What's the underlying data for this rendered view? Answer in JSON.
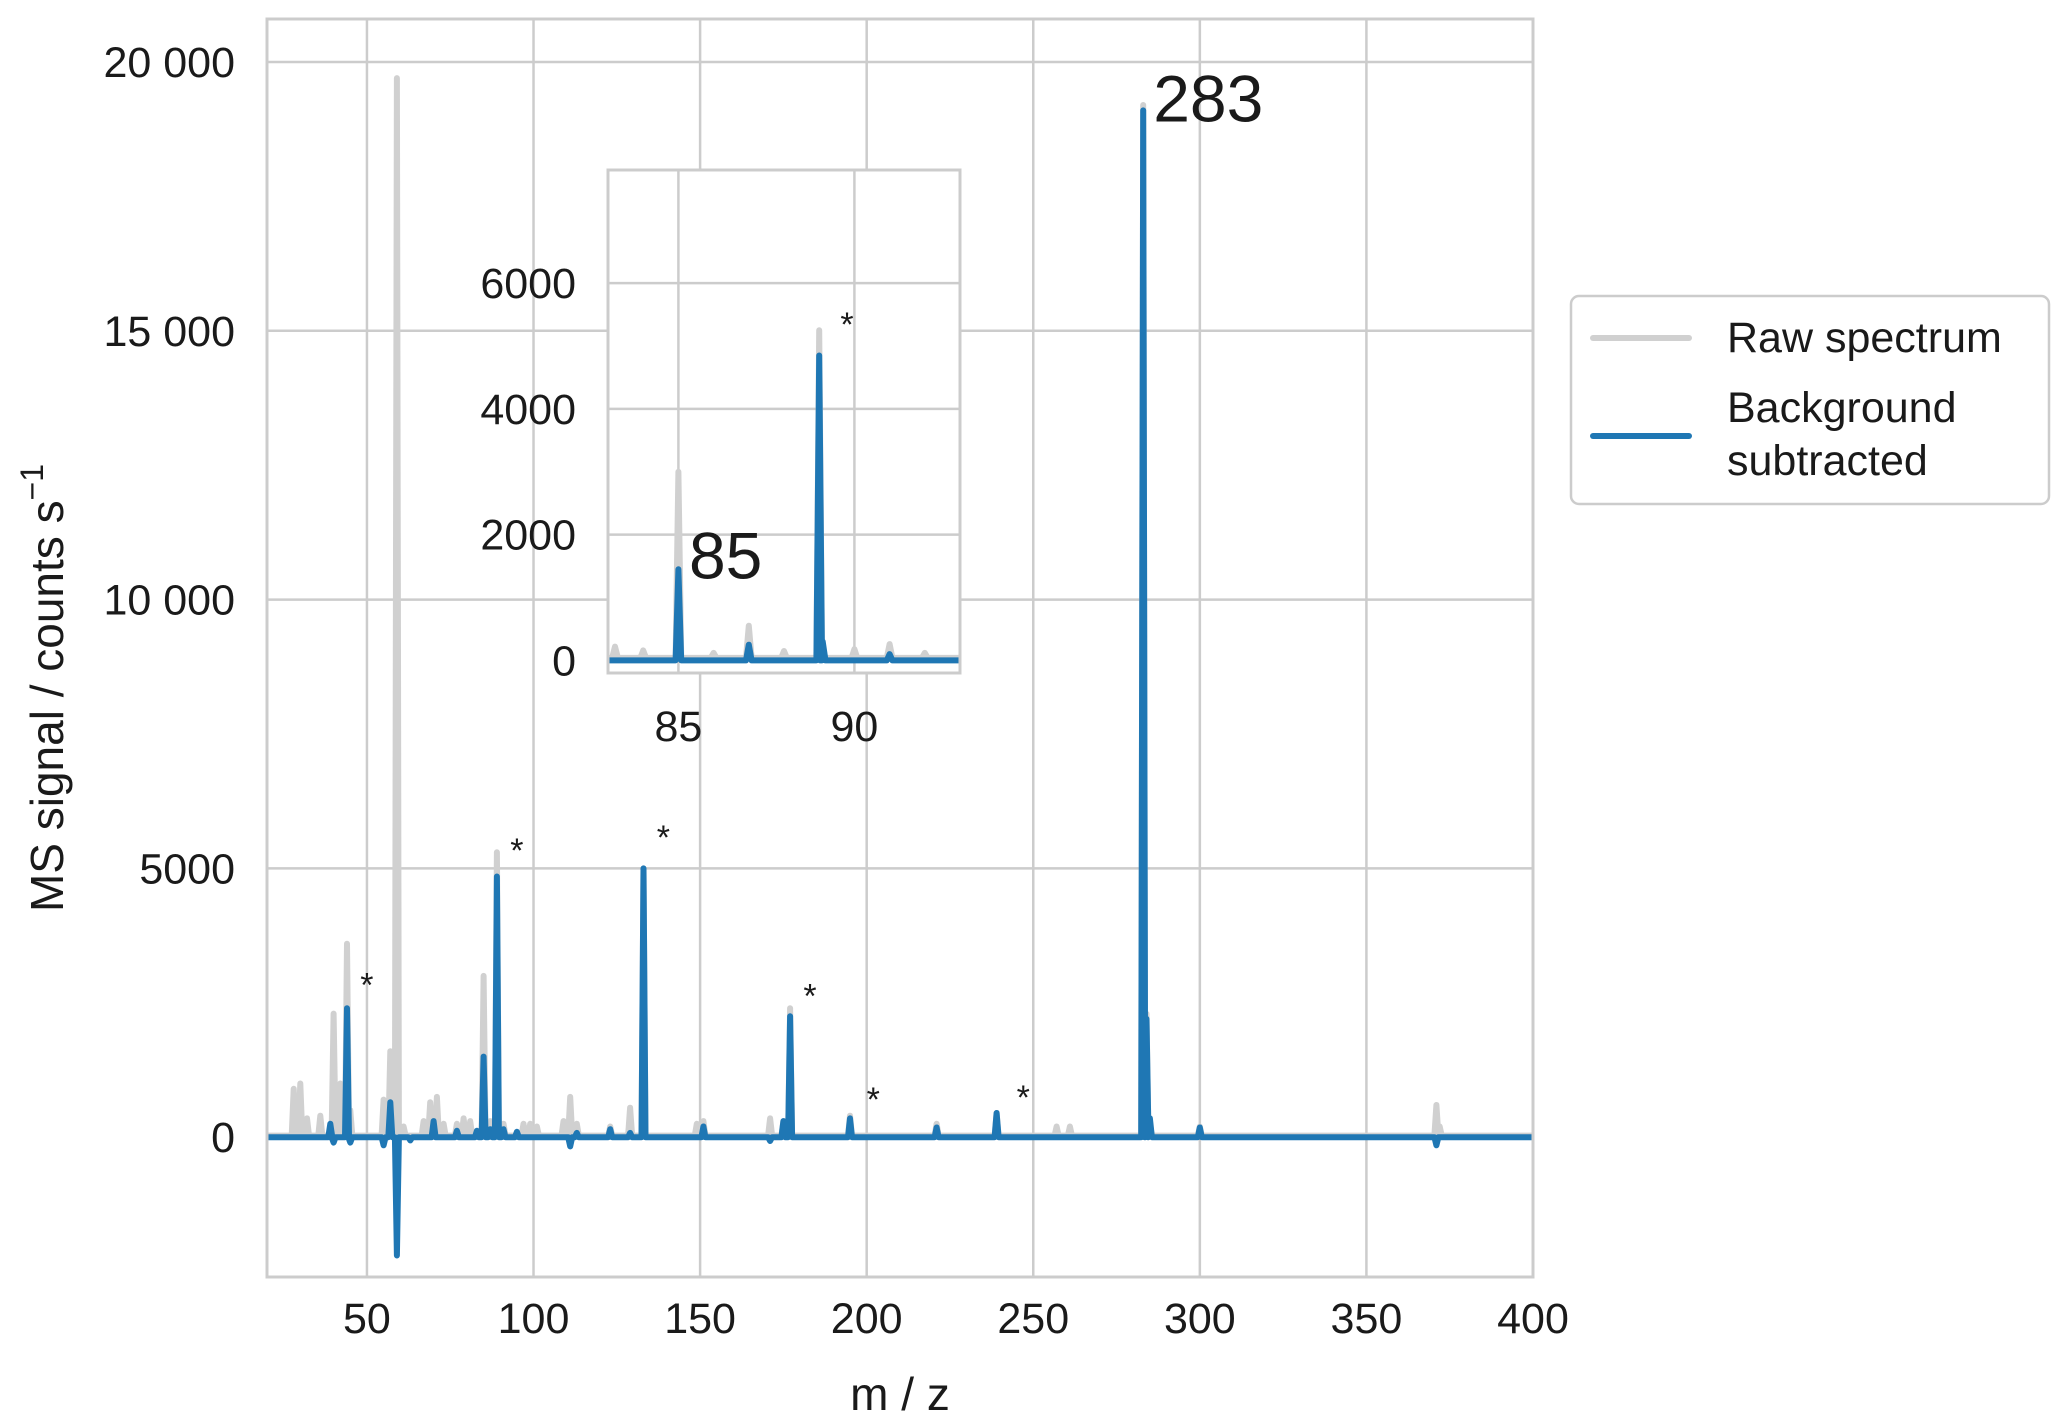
{
  "chart_data": [
    {
      "type": "line",
      "panel": "main",
      "xlabel": "m / z",
      "ylabel": "MS signal / counts s",
      "ylabel_superscript": "−1",
      "xlim": [
        20,
        400
      ],
      "ylim": [
        -2600,
        20800
      ],
      "xticks": [
        50,
        100,
        150,
        200,
        250,
        300,
        350,
        400
      ],
      "xtick_labels": [
        "50",
        "100",
        "150",
        "200",
        "250",
        "300",
        "350",
        "400"
      ],
      "yticks": [
        0,
        5000,
        10000,
        15000,
        20000
      ],
      "ytick_labels": [
        "0",
        "5000",
        "10 000",
        "15 000",
        "20 000"
      ],
      "grid": true,
      "legend": "right, outside",
      "series": [
        {
          "name": "Raw spectrum",
          "color": "#d0d0d0",
          "baseline": 30,
          "peaks": [
            {
              "x": 28,
              "y": 900
            },
            {
              "x": 30,
              "y": 1000
            },
            {
              "x": 32,
              "y": 350
            },
            {
              "x": 36,
              "y": 400
            },
            {
              "x": 40,
              "y": 2300
            },
            {
              "x": 42,
              "y": 1000
            },
            {
              "x": 44,
              "y": 3600
            },
            {
              "x": 45,
              "y": 500
            },
            {
              "x": 55,
              "y": 700
            },
            {
              "x": 57,
              "y": 1600
            },
            {
              "x": 58,
              "y": 600
            },
            {
              "x": 59,
              "y": 19700
            },
            {
              "x": 61,
              "y": 200
            },
            {
              "x": 67,
              "y": 300
            },
            {
              "x": 69,
              "y": 650
            },
            {
              "x": 71,
              "y": 750
            },
            {
              "x": 73,
              "y": 250
            },
            {
              "x": 77,
              "y": 250
            },
            {
              "x": 79,
              "y": 350
            },
            {
              "x": 81,
              "y": 300
            },
            {
              "x": 85,
              "y": 3000
            },
            {
              "x": 87,
              "y": 300
            },
            {
              "x": 89,
              "y": 5300
            },
            {
              "x": 91,
              "y": 250
            },
            {
              "x": 97,
              "y": 250
            },
            {
              "x": 99,
              "y": 250
            },
            {
              "x": 101,
              "y": 200
            },
            {
              "x": 109,
              "y": 300
            },
            {
              "x": 111,
              "y": 750
            },
            {
              "x": 113,
              "y": 250
            },
            {
              "x": 123,
              "y": 200
            },
            {
              "x": 129,
              "y": 550
            },
            {
              "x": 133,
              "y": 5000
            },
            {
              "x": 149,
              "y": 250
            },
            {
              "x": 151,
              "y": 300
            },
            {
              "x": 171,
              "y": 350
            },
            {
              "x": 175,
              "y": 300
            },
            {
              "x": 177,
              "y": 2400
            },
            {
              "x": 195,
              "y": 400
            },
            {
              "x": 221,
              "y": 250
            },
            {
              "x": 239,
              "y": 450
            },
            {
              "x": 257,
              "y": 200
            },
            {
              "x": 261,
              "y": 200
            },
            {
              "x": 283,
              "y": 19200
            },
            {
              "x": 284,
              "y": 2300
            },
            {
              "x": 285,
              "y": 250
            },
            {
              "x": 300,
              "y": 200
            },
            {
              "x": 371,
              "y": 600
            },
            {
              "x": 372,
              "y": 200
            }
          ]
        },
        {
          "name": "Background subtracted",
          "color": "#1f77b4",
          "baseline": 0,
          "peaks": [
            {
              "x": 39,
              "y": 250
            },
            {
              "x": 40,
              "y": -100
            },
            {
              "x": 44,
              "y": 2400
            },
            {
              "x": 45,
              "y": -100
            },
            {
              "x": 55,
              "y": -150
            },
            {
              "x": 57,
              "y": 650
            },
            {
              "x": 59,
              "y": -2200
            },
            {
              "x": 63,
              "y": -60
            },
            {
              "x": 70,
              "y": 300
            },
            {
              "x": 77,
              "y": 120
            },
            {
              "x": 83,
              "y": 120
            },
            {
              "x": 85,
              "y": 1500
            },
            {
              "x": 87,
              "y": 150
            },
            {
              "x": 89,
              "y": 4850
            },
            {
              "x": 91,
              "y": 150
            },
            {
              "x": 95,
              "y": 100
            },
            {
              "x": 111,
              "y": -170
            },
            {
              "x": 113,
              "y": 80
            },
            {
              "x": 123,
              "y": 150
            },
            {
              "x": 129,
              "y": 80
            },
            {
              "x": 133,
              "y": 5000
            },
            {
              "x": 151,
              "y": 200
            },
            {
              "x": 171,
              "y": -70
            },
            {
              "x": 175,
              "y": 300
            },
            {
              "x": 177,
              "y": 2250
            },
            {
              "x": 195,
              "y": 350
            },
            {
              "x": 221,
              "y": 180
            },
            {
              "x": 239,
              "y": 450
            },
            {
              "x": 283,
              "y": 19100
            },
            {
              "x": 284,
              "y": 2200
            },
            {
              "x": 285,
              "y": 350
            },
            {
              "x": 300,
              "y": 180
            },
            {
              "x": 371,
              "y": -150
            }
          ]
        }
      ],
      "annotations": [
        {
          "text": "283",
          "x": 286,
          "y": 19300,
          "size": "large"
        },
        {
          "text": "*",
          "x": 48,
          "y": 2950,
          "size": "small"
        },
        {
          "text": "*",
          "x": 93,
          "y": 5450,
          "size": "small"
        },
        {
          "text": "*",
          "x": 137,
          "y": 5700,
          "size": "small"
        },
        {
          "text": "*",
          "x": 181,
          "y": 2750,
          "size": "small"
        },
        {
          "text": "*",
          "x": 200,
          "y": 820,
          "size": "small"
        },
        {
          "text": "*",
          "x": 245,
          "y": 860,
          "size": "small"
        }
      ]
    },
    {
      "type": "line",
      "panel": "inset",
      "xlim": [
        83,
        93
      ],
      "ylim": [
        -200,
        7800
      ],
      "xticks": [
        85,
        90
      ],
      "xtick_labels": [
        "85",
        "90"
      ],
      "yticks": [
        0,
        2000,
        4000,
        6000
      ],
      "ytick_labels": [
        "0",
        "2000",
        "4000",
        "6000"
      ],
      "grid": true,
      "series": [
        {
          "name": "Raw spectrum",
          "color": "#d0d0d0",
          "baseline": 40,
          "peaks": [
            {
              "x": 83.2,
              "y": 220
            },
            {
              "x": 84.0,
              "y": 160
            },
            {
              "x": 85.0,
              "y": 3000
            },
            {
              "x": 86.0,
              "y": 120
            },
            {
              "x": 87.0,
              "y": 550
            },
            {
              "x": 88.0,
              "y": 150
            },
            {
              "x": 89.0,
              "y": 5250
            },
            {
              "x": 90.0,
              "y": 180
            },
            {
              "x": 91.0,
              "y": 260
            },
            {
              "x": 92.0,
              "y": 120
            }
          ]
        },
        {
          "name": "Background subtracted",
          "color": "#1f77b4",
          "baseline": 0,
          "peaks": [
            {
              "x": 85.0,
              "y": 1450
            },
            {
              "x": 87.0,
              "y": 250
            },
            {
              "x": 89.0,
              "y": 4850
            },
            {
              "x": 89.1,
              "y": 300
            },
            {
              "x": 91.0,
              "y": 100
            }
          ]
        }
      ],
      "annotations": [
        {
          "text": "85",
          "x": 85.3,
          "y": 1650,
          "size": "large"
        },
        {
          "text": "*",
          "x": 89.6,
          "y": 5450,
          "size": "small"
        }
      ]
    }
  ]
}
